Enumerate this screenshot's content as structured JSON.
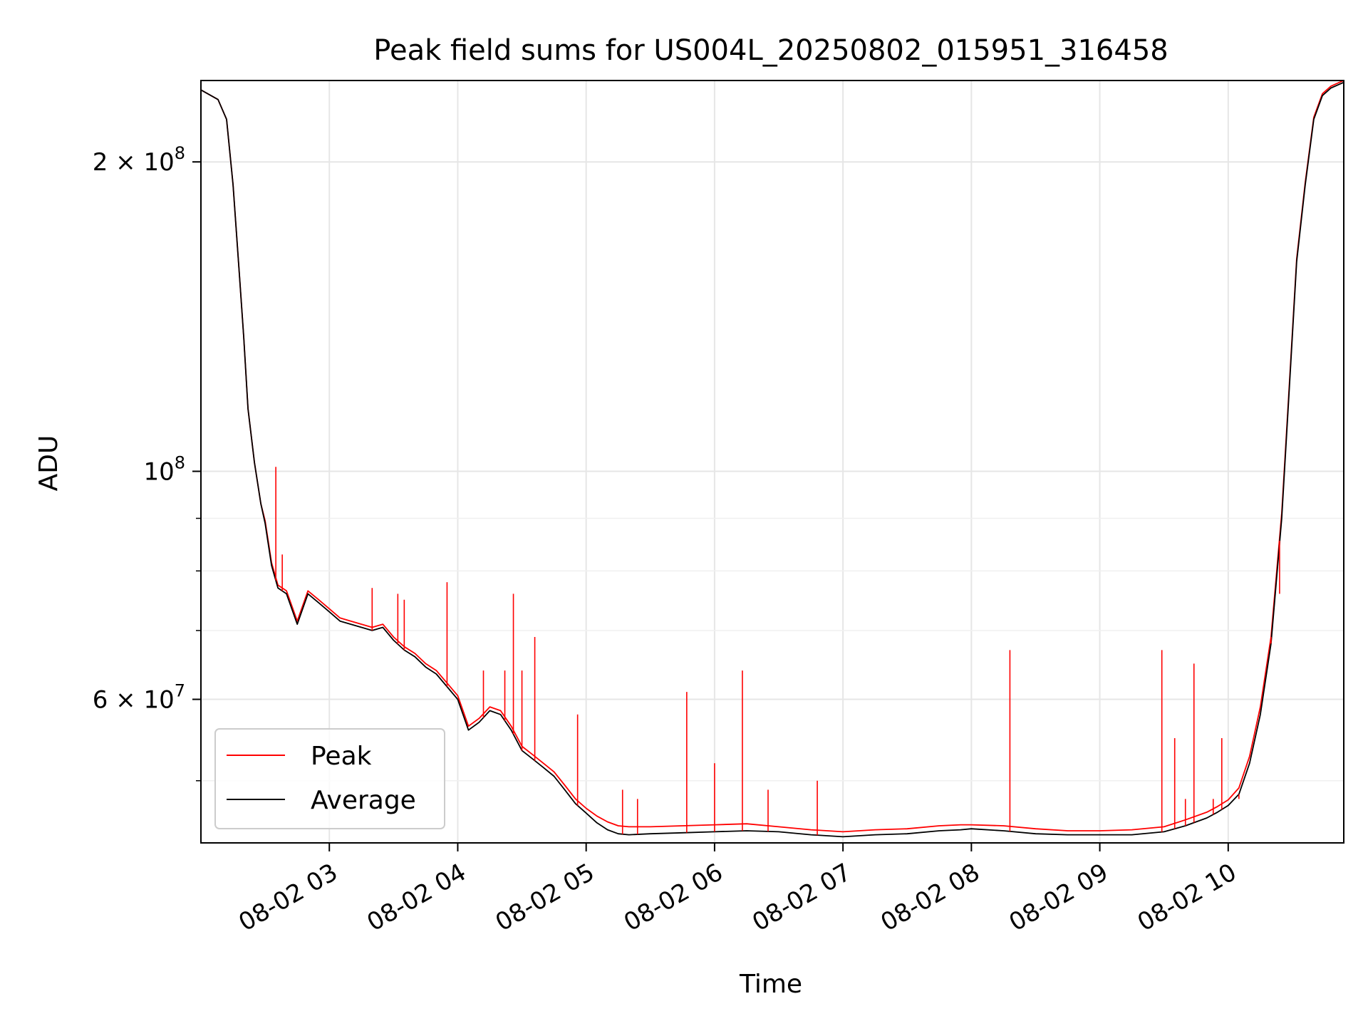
{
  "chart_data": {
    "type": "line",
    "title": "Peak field sums for US004L_20250802_015951_316458",
    "xlabel": "Time",
    "ylabel": "ADU",
    "yscale": "log",
    "xlim": [
      "2025-08-02T02:00:00",
      "2025-08-02T10:54:00"
    ],
    "ylim": [
      43500000,
      240000000
    ],
    "grid": true,
    "legend_position": "lower-left",
    "x_ticks": [
      {
        "time": "2025-08-02T03:00:00",
        "label": "08-02 03"
      },
      {
        "time": "2025-08-02T04:00:00",
        "label": "08-02 04"
      },
      {
        "time": "2025-08-02T05:00:00",
        "label": "08-02 05"
      },
      {
        "time": "2025-08-02T06:00:00",
        "label": "08-02 06"
      },
      {
        "time": "2025-08-02T07:00:00",
        "label": "08-02 07"
      },
      {
        "time": "2025-08-02T08:00:00",
        "label": "08-02 08"
      },
      {
        "time": "2025-08-02T09:00:00",
        "label": "08-02 09"
      },
      {
        "time": "2025-08-02T10:00:00",
        "label": "08-02 10"
      }
    ],
    "y_ticks": [
      {
        "value": 60000000,
        "base": "6 × 10",
        "exp": "7"
      },
      {
        "value": 100000000,
        "base": "10",
        "exp": "8"
      },
      {
        "value": 200000000,
        "base": "2 × 10",
        "exp": "8"
      }
    ],
    "y_minor_ticks": [
      50000000,
      70000000,
      80000000,
      90000000
    ],
    "series": [
      {
        "name": "Average",
        "color": "#000000",
        "x": [
          "02:00",
          "02:08",
          "02:12",
          "02:15",
          "02:18",
          "02:20",
          "02:22",
          "02:25",
          "02:28",
          "02:30",
          "02:33",
          "02:36",
          "02:40",
          "02:45",
          "02:50",
          "02:55",
          "03:00",
          "03:05",
          "03:10",
          "03:15",
          "03:20",
          "03:25",
          "03:30",
          "03:35",
          "03:40",
          "03:45",
          "03:50",
          "04:00",
          "04:05",
          "04:10",
          "04:15",
          "04:20",
          "04:25",
          "04:30",
          "04:35",
          "04:40",
          "04:45",
          "04:50",
          "04:55",
          "05:00",
          "05:05",
          "05:10",
          "05:15",
          "05:20",
          "05:30",
          "05:45",
          "06:00",
          "06:15",
          "06:30",
          "06:45",
          "07:00",
          "07:15",
          "07:30",
          "07:45",
          "07:55",
          "08:00",
          "08:15",
          "08:30",
          "08:45",
          "09:00",
          "09:15",
          "09:30",
          "09:40",
          "09:50",
          "09:55",
          "10:00",
          "10:05",
          "10:10",
          "10:15",
          "10:20",
          "10:25",
          "10:28",
          "10:32",
          "10:36",
          "10:40",
          "10:44",
          "10:48",
          "10:52",
          "10:54"
        ],
        "values": [
          235000000,
          230000000,
          220000000,
          190000000,
          155000000,
          135000000,
          115000000,
          102000000,
          93000000,
          89000000,
          81000000,
          77000000,
          76000000,
          71000000,
          76000000,
          74500000,
          73000000,
          71500000,
          71000000,
          70500000,
          70000000,
          70500000,
          68500000,
          67000000,
          66000000,
          64500000,
          63500000,
          60000000,
          56000000,
          57000000,
          58500000,
          58000000,
          56000000,
          53500000,
          52500000,
          51500000,
          50500000,
          49000000,
          47500000,
          46500000,
          45500000,
          44800000,
          44400000,
          44300000,
          44400000,
          44500000,
          44600000,
          44700000,
          44600000,
          44300000,
          44100000,
          44300000,
          44400000,
          44700000,
          44800000,
          44900000,
          44700000,
          44400000,
          44300000,
          44300000,
          44300000,
          44600000,
          45200000,
          46000000,
          46600000,
          47300000,
          48500000,
          52000000,
          58000000,
          68000000,
          90000000,
          115000000,
          160000000,
          190000000,
          220000000,
          232000000,
          236000000,
          238000000,
          239000000
        ]
      },
      {
        "name": "Peak",
        "color": "#ff0000",
        "x": [
          "02:00",
          "02:08",
          "02:12",
          "02:15",
          "02:18",
          "02:20",
          "02:22",
          "02:25",
          "02:28",
          "02:30",
          "02:33",
          "02:36",
          "02:40",
          "02:45",
          "02:50",
          "02:55",
          "03:00",
          "03:05",
          "03:10",
          "03:15",
          "03:20",
          "03:25",
          "03:30",
          "03:35",
          "03:40",
          "03:45",
          "03:50",
          "04:00",
          "04:05",
          "04:10",
          "04:15",
          "04:20",
          "04:25",
          "04:30",
          "04:35",
          "04:40",
          "04:45",
          "04:50",
          "04:55",
          "05:00",
          "05:05",
          "05:10",
          "05:15",
          "05:20",
          "05:30",
          "05:45",
          "06:00",
          "06:15",
          "06:30",
          "06:45",
          "07:00",
          "07:15",
          "07:30",
          "07:45",
          "07:55",
          "08:00",
          "08:15",
          "08:30",
          "08:45",
          "09:00",
          "09:15",
          "09:30",
          "09:40",
          "09:50",
          "09:55",
          "10:00",
          "10:05",
          "10:10",
          "10:15",
          "10:20",
          "10:25",
          "10:28",
          "10:32",
          "10:36",
          "10:40",
          "10:44",
          "10:48",
          "10:52",
          "10:54"
        ],
        "values": [
          235000000,
          230000000,
          220000000,
          190000000,
          155000000,
          135000000,
          115000000,
          102000000,
          93000000,
          89500000,
          81500000,
          77500000,
          76500000,
          71500000,
          76500000,
          75000000,
          73500000,
          72000000,
          71500000,
          71000000,
          70500000,
          71000000,
          69000000,
          67500000,
          66500000,
          65000000,
          64000000,
          60500000,
          56500000,
          57500000,
          59000000,
          58500000,
          56500000,
          54000000,
          53000000,
          52000000,
          51000000,
          49500000,
          48000000,
          47000000,
          46200000,
          45600000,
          45200000,
          45100000,
          45100000,
          45200000,
          45300000,
          45400000,
          45100000,
          44800000,
          44600000,
          44800000,
          44900000,
          45200000,
          45300000,
          45300000,
          45200000,
          44900000,
          44700000,
          44700000,
          44800000,
          45100000,
          45800000,
          46600000,
          47200000,
          47900000,
          49200000,
          52800000,
          59000000,
          69000000,
          91000000,
          116000000,
          161000000,
          191000000,
          221000000,
          233000000,
          237000000,
          239000000,
          240000000
        ]
      }
    ],
    "peak_spikes": [
      {
        "time": "02:35",
        "value": 101000000
      },
      {
        "time": "02:38",
        "value": 83000000
      },
      {
        "time": "03:20",
        "value": 77000000
      },
      {
        "time": "03:35",
        "value": 75000000
      },
      {
        "time": "03:32",
        "value": 76000000
      },
      {
        "time": "03:55",
        "value": 78000000
      },
      {
        "time": "04:12",
        "value": 64000000
      },
      {
        "time": "04:22",
        "value": 64000000
      },
      {
        "time": "04:26",
        "value": 76000000
      },
      {
        "time": "04:30",
        "value": 64000000
      },
      {
        "time": "04:36",
        "value": 69000000
      },
      {
        "time": "04:56",
        "value": 58000000
      },
      {
        "time": "05:17",
        "value": 49000000
      },
      {
        "time": "05:24",
        "value": 48000000
      },
      {
        "time": "05:47",
        "value": 61000000
      },
      {
        "time": "06:00",
        "value": 52000000
      },
      {
        "time": "06:13",
        "value": 64000000
      },
      {
        "time": "06:25",
        "value": 49000000
      },
      {
        "time": "06:48",
        "value": 50000000
      },
      {
        "time": "08:18",
        "value": 67000000
      },
      {
        "time": "09:29",
        "value": 67000000
      },
      {
        "time": "09:35",
        "value": 55000000
      },
      {
        "time": "09:40",
        "value": 48000000
      },
      {
        "time": "09:44",
        "value": 65000000
      },
      {
        "time": "09:53",
        "value": 48000000
      },
      {
        "time": "09:57",
        "value": 55000000
      },
      {
        "time": "10:05",
        "value": 48000000
      },
      {
        "time": "10:20",
        "value": 69000000
      },
      {
        "time": "10:24",
        "value": 76000000
      }
    ]
  }
}
